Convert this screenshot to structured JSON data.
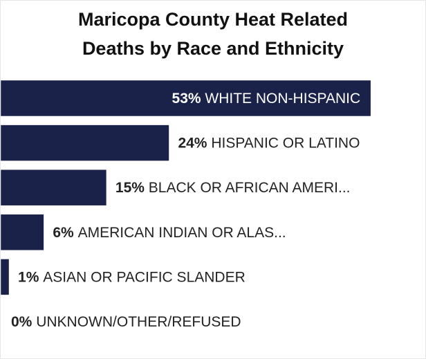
{
  "chart_data": {
    "type": "bar",
    "orientation": "horizontal",
    "title_lines": [
      "Maricopa County Heat Related",
      "Deaths by Race and Ethnicity"
    ],
    "categories": [
      "WHITE NON-HISPANIC",
      "HISPANIC OR LATINO",
      "BLACK OR AFRICAN AMERI...",
      "AMERICAN INDIAN OR ALAS...",
      "ASIAN OR PACIFIC SLANDER",
      "UNKNOWN/OTHER/REFUSED"
    ],
    "values": [
      53,
      24,
      15,
      6,
      1,
      0
    ],
    "value_labels": [
      "53%",
      "24%",
      "15%",
      "6%",
      "1%",
      "0%"
    ],
    "color": "#1a2249"
  }
}
